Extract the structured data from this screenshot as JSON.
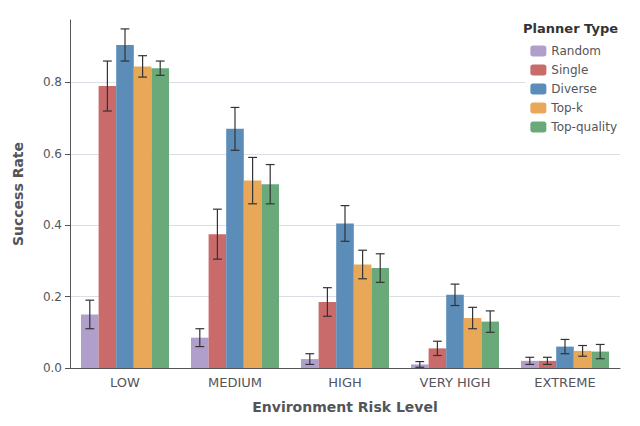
{
  "chart_data": {
    "type": "bar",
    "categories": [
      "LOW",
      "MEDIUM",
      "HIGH",
      "VERY HIGH",
      "EXTREME"
    ],
    "series": [
      {
        "name": "Random",
        "color": "#b09fca",
        "values": [
          0.15,
          0.085,
          0.025,
          0.01,
          0.02
        ],
        "errors": [
          0.04,
          0.025,
          0.015,
          0.008,
          0.01
        ]
      },
      {
        "name": "Single",
        "color": "#c96b6b",
        "values": [
          0.79,
          0.375,
          0.185,
          0.055,
          0.02
        ],
        "errors": [
          0.07,
          0.07,
          0.04,
          0.02,
          0.01
        ]
      },
      {
        "name": "Diverse",
        "color": "#5b8db8",
        "values": [
          0.905,
          0.67,
          0.405,
          0.205,
          0.06
        ],
        "errors": [
          0.045,
          0.06,
          0.05,
          0.03,
          0.02
        ]
      },
      {
        "name": "Top-k",
        "color": "#e8a857",
        "values": [
          0.845,
          0.525,
          0.29,
          0.14,
          0.048
        ],
        "errors": [
          0.03,
          0.065,
          0.04,
          0.03,
          0.015
        ]
      },
      {
        "name": "Top-quality",
        "color": "#6aaa7a",
        "values": [
          0.84,
          0.515,
          0.28,
          0.13,
          0.046
        ],
        "errors": [
          0.02,
          0.055,
          0.04,
          0.03,
          0.02
        ]
      }
    ],
    "xlabel": "Environment Risk Level",
    "ylabel": "Success Rate",
    "legend_title": "Planner Type",
    "legend": "upper right",
    "ylim": [
      0.0,
      0.975
    ],
    "yticks": [
      {
        "value": 0.0,
        "label": "0.0"
      },
      0.2,
      0.4,
      0.6,
      0.8
    ],
    "grid": true
  }
}
